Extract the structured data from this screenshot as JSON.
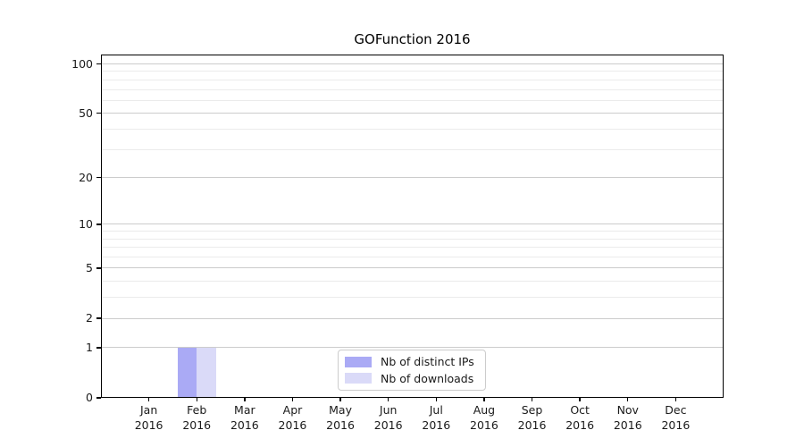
{
  "chart_data": {
    "type": "bar",
    "title": "GOFunction 2016",
    "x_tick_months": [
      "Jan",
      "Feb",
      "Mar",
      "Apr",
      "May",
      "Jun",
      "Jul",
      "Aug",
      "Sep",
      "Oct",
      "Nov",
      "Dec"
    ],
    "x_tick_year": "2016",
    "series": [
      {
        "name": "Nb of distinct IPs",
        "color": "#aaaaf5",
        "values": [
          0,
          1,
          0,
          0,
          0,
          0,
          0,
          0,
          0,
          0,
          0,
          0
        ]
      },
      {
        "name": "Nb of downloads",
        "color": "#dadaf8",
        "values": [
          0,
          1,
          0,
          0,
          0,
          0,
          0,
          0,
          0,
          0,
          0,
          0
        ]
      }
    ],
    "yscale": "log1p",
    "ylim": [
      0,
      114
    ],
    "y_major_ticks": [
      0,
      1,
      2,
      5,
      10,
      20,
      50,
      100
    ],
    "y_minor_ticks": [
      3,
      4,
      6,
      7,
      8,
      9,
      30,
      40,
      60,
      70,
      80,
      90
    ],
    "grid": "horizontal",
    "legend_position": "lower center"
  },
  "colors": {
    "grid_major": "#cccccc",
    "grid_minor": "#ebebeb",
    "axis": "#000000",
    "text": "#1a1a1a",
    "legend_border": "#cccccc",
    "background": "#ffffff"
  }
}
